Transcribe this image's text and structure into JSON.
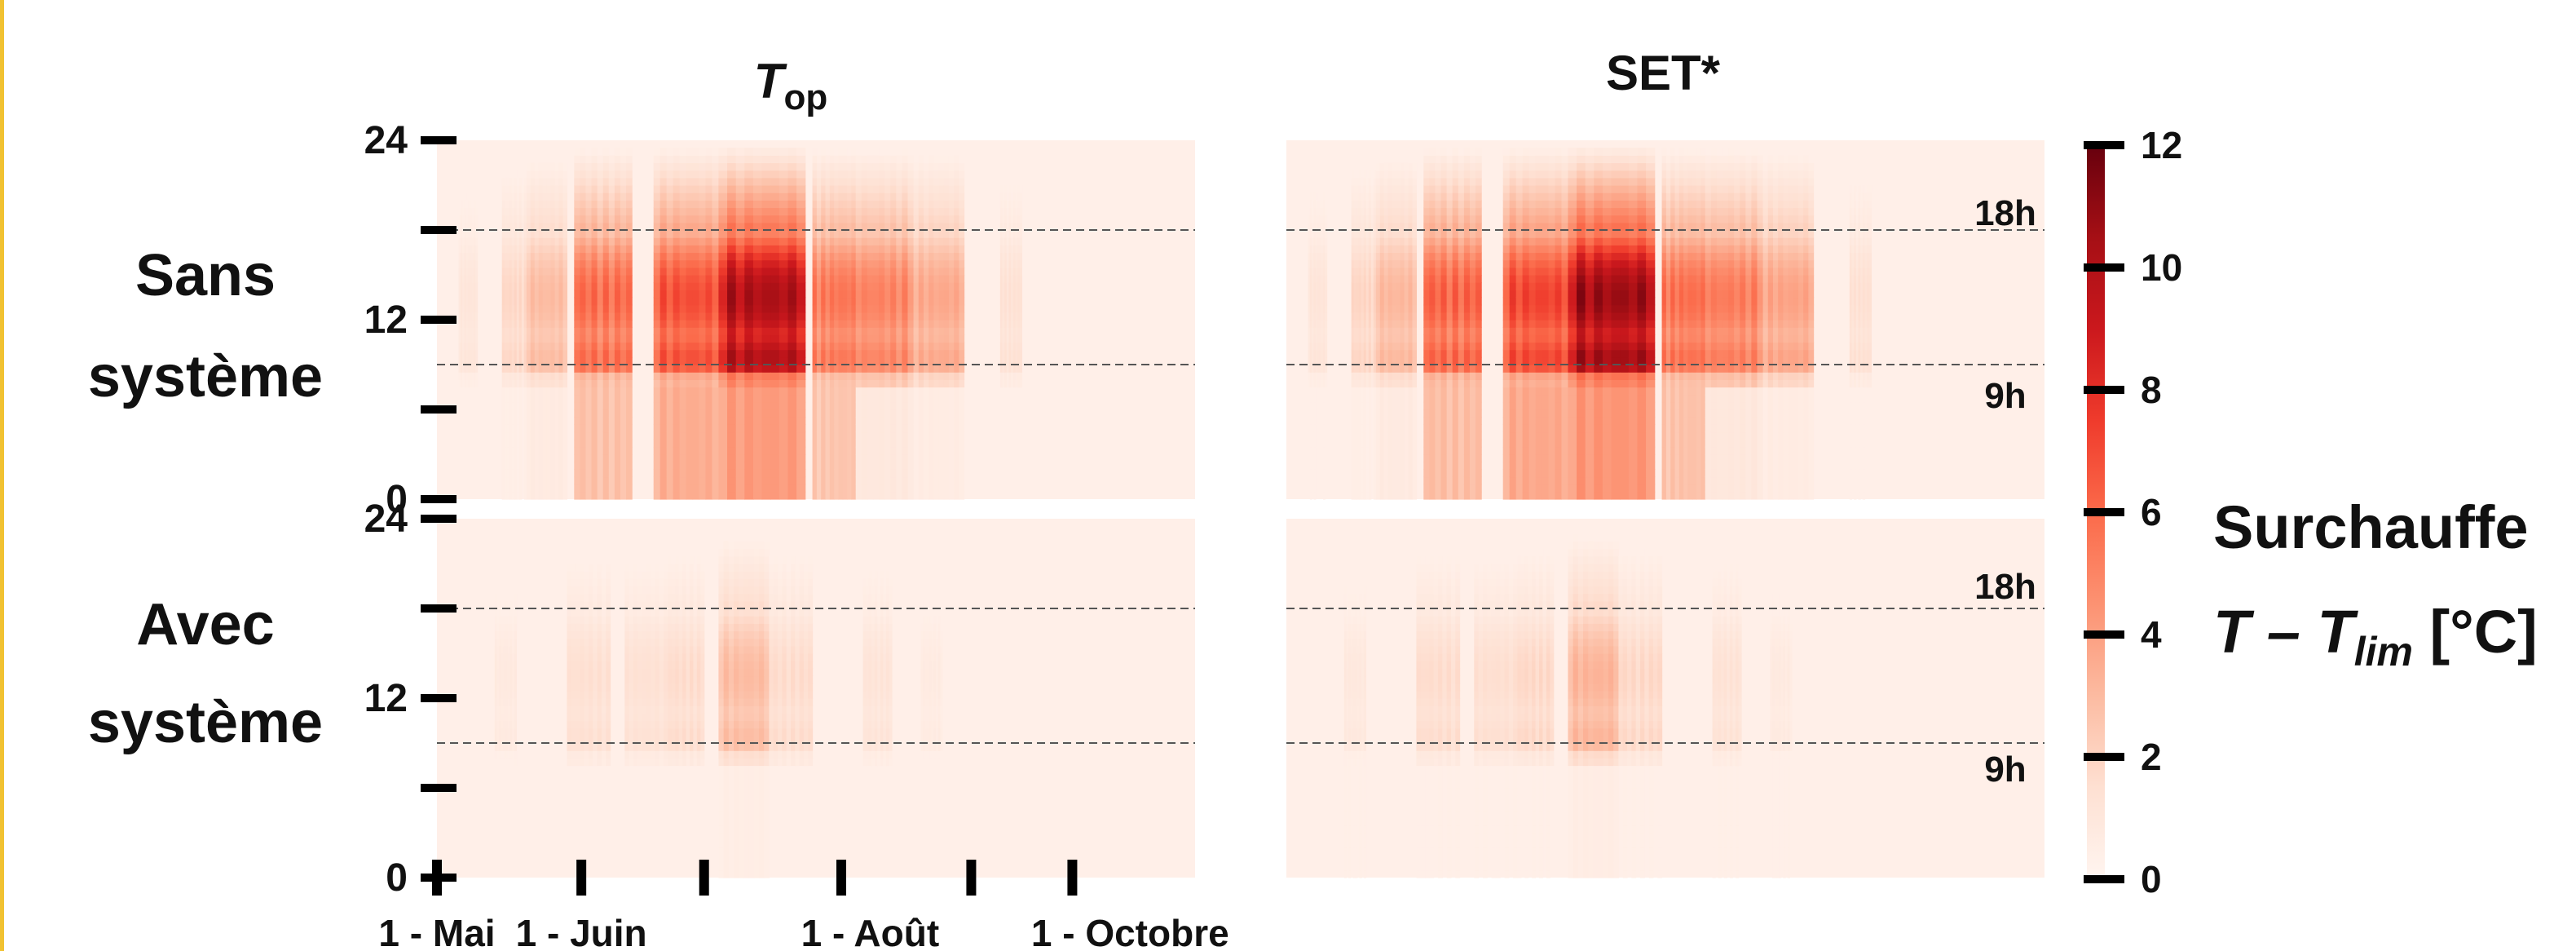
{
  "chart_data": {
    "type": "heatmap",
    "columns": [
      {
        "title_main": "T",
        "title_sub": "op"
      },
      {
        "title_main": "SET*",
        "title_sub": ""
      }
    ],
    "rows": [
      {
        "label_line1": "Sans",
        "label_line2": "système"
      },
      {
        "label_line1": "Avec",
        "label_line2": "système"
      }
    ],
    "y_axis": {
      "range": [
        0,
        24
      ],
      "ticks": [
        0,
        6,
        12,
        18,
        24
      ],
      "tick_labels": [
        "0",
        "",
        "12",
        "",
        "24"
      ]
    },
    "x_axis": {
      "range_months": [
        5,
        10.25
      ],
      "ticks": [
        5,
        6,
        6.85,
        7.8,
        8.7,
        9.4
      ],
      "tick_labels": [
        {
          "text": "1 - Mai",
          "at": 5
        },
        {
          "text": "1 - Juin",
          "at": 6
        },
        {
          "text": "1 - Août",
          "at": 8
        },
        {
          "text": "1 - Octobre",
          "at": 9.8
        }
      ]
    },
    "reference_lines": [
      {
        "hour": 18,
        "label": "18h"
      },
      {
        "hour": 9,
        "label": "9h"
      }
    ],
    "colorbar": {
      "label_line1": "Surchauffe",
      "label_main": "T – T",
      "label_sub": "lim",
      "label_unit": " [°C]",
      "range": [
        0,
        12
      ],
      "ticks": [
        "0",
        "2",
        "4",
        "6",
        "8",
        "10",
        "12"
      ]
    },
    "colormap": {
      "stops": [
        {
          "v": 0,
          "color": "#fff5f0"
        },
        {
          "v": 1.5,
          "color": "#fee0d2"
        },
        {
          "v": 3,
          "color": "#fcbba1"
        },
        {
          "v": 4.5,
          "color": "#fc9272"
        },
        {
          "v": 6,
          "color": "#fb6a4a"
        },
        {
          "v": 7.5,
          "color": "#ef3b2c"
        },
        {
          "v": 9,
          "color": "#cb181d"
        },
        {
          "v": 10.5,
          "color": "#a50f15"
        },
        {
          "v": 12,
          "color": "#67000d"
        }
      ]
    },
    "background_value": 0.4,
    "heat_bands": {
      "sans_systeme": [
        {
          "start": 5.15,
          "end": 5.28,
          "day_max": 1.2,
          "night_max": 0.4
        },
        {
          "start": 5.45,
          "end": 5.62,
          "day_max": 2.0,
          "night_max": 0.5
        },
        {
          "start": 5.62,
          "end": 5.9,
          "day_max": 3.2,
          "night_max": 0.8
        },
        {
          "start": 5.95,
          "end": 6.35,
          "day_max": 6.5,
          "night_max": 3.0
        },
        {
          "start": 6.5,
          "end": 6.95,
          "day_max": 7.5,
          "night_max": 3.8
        },
        {
          "start": 6.95,
          "end": 7.55,
          "day_max": 11.0,
          "night_max": 4.5
        },
        {
          "start": 7.6,
          "end": 7.9,
          "day_max": 6.0,
          "night_max": 2.8
        },
        {
          "start": 7.9,
          "end": 8.3,
          "day_max": 5.5,
          "night_max": 1.0
        },
        {
          "start": 8.3,
          "end": 8.65,
          "day_max": 4.0,
          "night_max": 0.7
        },
        {
          "start": 8.9,
          "end": 9.05,
          "day_max": 1.5,
          "night_max": 0.4
        }
      ],
      "avec_systeme": [
        {
          "start": 5.4,
          "end": 5.55,
          "day_max": 0.9,
          "night_max": 0.4
        },
        {
          "start": 5.9,
          "end": 6.2,
          "day_max": 1.6,
          "night_max": 0.4
        },
        {
          "start": 6.3,
          "end": 6.6,
          "day_max": 1.5,
          "night_max": 0.4
        },
        {
          "start": 6.6,
          "end": 6.85,
          "day_max": 1.8,
          "night_max": 0.4
        },
        {
          "start": 6.95,
          "end": 7.3,
          "day_max": 3.2,
          "night_max": 0.6
        },
        {
          "start": 7.3,
          "end": 7.6,
          "day_max": 1.8,
          "night_max": 0.4
        },
        {
          "start": 7.95,
          "end": 8.15,
          "day_max": 1.3,
          "night_max": 0.4
        },
        {
          "start": 8.35,
          "end": 8.5,
          "day_max": 0.8,
          "night_max": 0.4
        }
      ]
    }
  }
}
